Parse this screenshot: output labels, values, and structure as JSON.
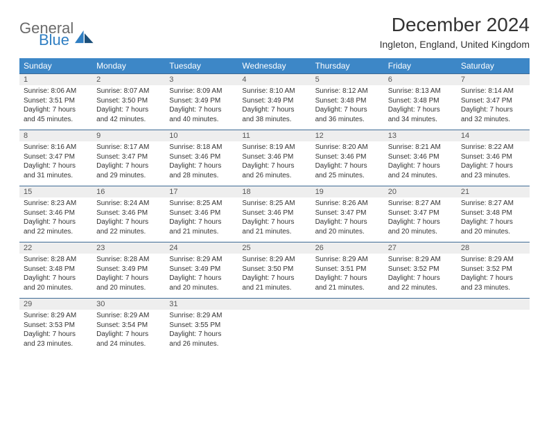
{
  "logo": {
    "text1": "General",
    "text2": "Blue"
  },
  "header": {
    "title": "December 2024",
    "subtitle": "Ingleton, England, United Kingdom"
  },
  "colors": {
    "header_bg": "#3d87c7",
    "header_text": "#ffffff",
    "daynum_bg": "#eeeeee",
    "rule": "#3d6a95",
    "body_text": "#333333",
    "logo_gray": "#6a6a6a",
    "logo_blue": "#2f7ec2"
  },
  "weekdays": [
    "Sunday",
    "Monday",
    "Tuesday",
    "Wednesday",
    "Thursday",
    "Friday",
    "Saturday"
  ],
  "weeks": [
    {
      "days": [
        {
          "num": "1",
          "sunrise": "Sunrise: 8:06 AM",
          "sunset": "Sunset: 3:51 PM",
          "day1": "Daylight: 7 hours",
          "day2": "and 45 minutes."
        },
        {
          "num": "2",
          "sunrise": "Sunrise: 8:07 AM",
          "sunset": "Sunset: 3:50 PM",
          "day1": "Daylight: 7 hours",
          "day2": "and 42 minutes."
        },
        {
          "num": "3",
          "sunrise": "Sunrise: 8:09 AM",
          "sunset": "Sunset: 3:49 PM",
          "day1": "Daylight: 7 hours",
          "day2": "and 40 minutes."
        },
        {
          "num": "4",
          "sunrise": "Sunrise: 8:10 AM",
          "sunset": "Sunset: 3:49 PM",
          "day1": "Daylight: 7 hours",
          "day2": "and 38 minutes."
        },
        {
          "num": "5",
          "sunrise": "Sunrise: 8:12 AM",
          "sunset": "Sunset: 3:48 PM",
          "day1": "Daylight: 7 hours",
          "day2": "and 36 minutes."
        },
        {
          "num": "6",
          "sunrise": "Sunrise: 8:13 AM",
          "sunset": "Sunset: 3:48 PM",
          "day1": "Daylight: 7 hours",
          "day2": "and 34 minutes."
        },
        {
          "num": "7",
          "sunrise": "Sunrise: 8:14 AM",
          "sunset": "Sunset: 3:47 PM",
          "day1": "Daylight: 7 hours",
          "day2": "and 32 minutes."
        }
      ]
    },
    {
      "days": [
        {
          "num": "8",
          "sunrise": "Sunrise: 8:16 AM",
          "sunset": "Sunset: 3:47 PM",
          "day1": "Daylight: 7 hours",
          "day2": "and 31 minutes."
        },
        {
          "num": "9",
          "sunrise": "Sunrise: 8:17 AM",
          "sunset": "Sunset: 3:47 PM",
          "day1": "Daylight: 7 hours",
          "day2": "and 29 minutes."
        },
        {
          "num": "10",
          "sunrise": "Sunrise: 8:18 AM",
          "sunset": "Sunset: 3:46 PM",
          "day1": "Daylight: 7 hours",
          "day2": "and 28 minutes."
        },
        {
          "num": "11",
          "sunrise": "Sunrise: 8:19 AM",
          "sunset": "Sunset: 3:46 PM",
          "day1": "Daylight: 7 hours",
          "day2": "and 26 minutes."
        },
        {
          "num": "12",
          "sunrise": "Sunrise: 8:20 AM",
          "sunset": "Sunset: 3:46 PM",
          "day1": "Daylight: 7 hours",
          "day2": "and 25 minutes."
        },
        {
          "num": "13",
          "sunrise": "Sunrise: 8:21 AM",
          "sunset": "Sunset: 3:46 PM",
          "day1": "Daylight: 7 hours",
          "day2": "and 24 minutes."
        },
        {
          "num": "14",
          "sunrise": "Sunrise: 8:22 AM",
          "sunset": "Sunset: 3:46 PM",
          "day1": "Daylight: 7 hours",
          "day2": "and 23 minutes."
        }
      ]
    },
    {
      "days": [
        {
          "num": "15",
          "sunrise": "Sunrise: 8:23 AM",
          "sunset": "Sunset: 3:46 PM",
          "day1": "Daylight: 7 hours",
          "day2": "and 22 minutes."
        },
        {
          "num": "16",
          "sunrise": "Sunrise: 8:24 AM",
          "sunset": "Sunset: 3:46 PM",
          "day1": "Daylight: 7 hours",
          "day2": "and 22 minutes."
        },
        {
          "num": "17",
          "sunrise": "Sunrise: 8:25 AM",
          "sunset": "Sunset: 3:46 PM",
          "day1": "Daylight: 7 hours",
          "day2": "and 21 minutes."
        },
        {
          "num": "18",
          "sunrise": "Sunrise: 8:25 AM",
          "sunset": "Sunset: 3:46 PM",
          "day1": "Daylight: 7 hours",
          "day2": "and 21 minutes."
        },
        {
          "num": "19",
          "sunrise": "Sunrise: 8:26 AM",
          "sunset": "Sunset: 3:47 PM",
          "day1": "Daylight: 7 hours",
          "day2": "and 20 minutes."
        },
        {
          "num": "20",
          "sunrise": "Sunrise: 8:27 AM",
          "sunset": "Sunset: 3:47 PM",
          "day1": "Daylight: 7 hours",
          "day2": "and 20 minutes."
        },
        {
          "num": "21",
          "sunrise": "Sunrise: 8:27 AM",
          "sunset": "Sunset: 3:48 PM",
          "day1": "Daylight: 7 hours",
          "day2": "and 20 minutes."
        }
      ]
    },
    {
      "days": [
        {
          "num": "22",
          "sunrise": "Sunrise: 8:28 AM",
          "sunset": "Sunset: 3:48 PM",
          "day1": "Daylight: 7 hours",
          "day2": "and 20 minutes."
        },
        {
          "num": "23",
          "sunrise": "Sunrise: 8:28 AM",
          "sunset": "Sunset: 3:49 PM",
          "day1": "Daylight: 7 hours",
          "day2": "and 20 minutes."
        },
        {
          "num": "24",
          "sunrise": "Sunrise: 8:29 AM",
          "sunset": "Sunset: 3:49 PM",
          "day1": "Daylight: 7 hours",
          "day2": "and 20 minutes."
        },
        {
          "num": "25",
          "sunrise": "Sunrise: 8:29 AM",
          "sunset": "Sunset: 3:50 PM",
          "day1": "Daylight: 7 hours",
          "day2": "and 21 minutes."
        },
        {
          "num": "26",
          "sunrise": "Sunrise: 8:29 AM",
          "sunset": "Sunset: 3:51 PM",
          "day1": "Daylight: 7 hours",
          "day2": "and 21 minutes."
        },
        {
          "num": "27",
          "sunrise": "Sunrise: 8:29 AM",
          "sunset": "Sunset: 3:52 PM",
          "day1": "Daylight: 7 hours",
          "day2": "and 22 minutes."
        },
        {
          "num": "28",
          "sunrise": "Sunrise: 8:29 AM",
          "sunset": "Sunset: 3:52 PM",
          "day1": "Daylight: 7 hours",
          "day2": "and 23 minutes."
        }
      ]
    },
    {
      "days": [
        {
          "num": "29",
          "sunrise": "Sunrise: 8:29 AM",
          "sunset": "Sunset: 3:53 PM",
          "day1": "Daylight: 7 hours",
          "day2": "and 23 minutes."
        },
        {
          "num": "30",
          "sunrise": "Sunrise: 8:29 AM",
          "sunset": "Sunset: 3:54 PM",
          "day1": "Daylight: 7 hours",
          "day2": "and 24 minutes."
        },
        {
          "num": "31",
          "sunrise": "Sunrise: 8:29 AM",
          "sunset": "Sunset: 3:55 PM",
          "day1": "Daylight: 7 hours",
          "day2": "and 26 minutes."
        },
        {
          "empty": true
        },
        {
          "empty": true
        },
        {
          "empty": true
        },
        {
          "empty": true
        }
      ]
    }
  ]
}
